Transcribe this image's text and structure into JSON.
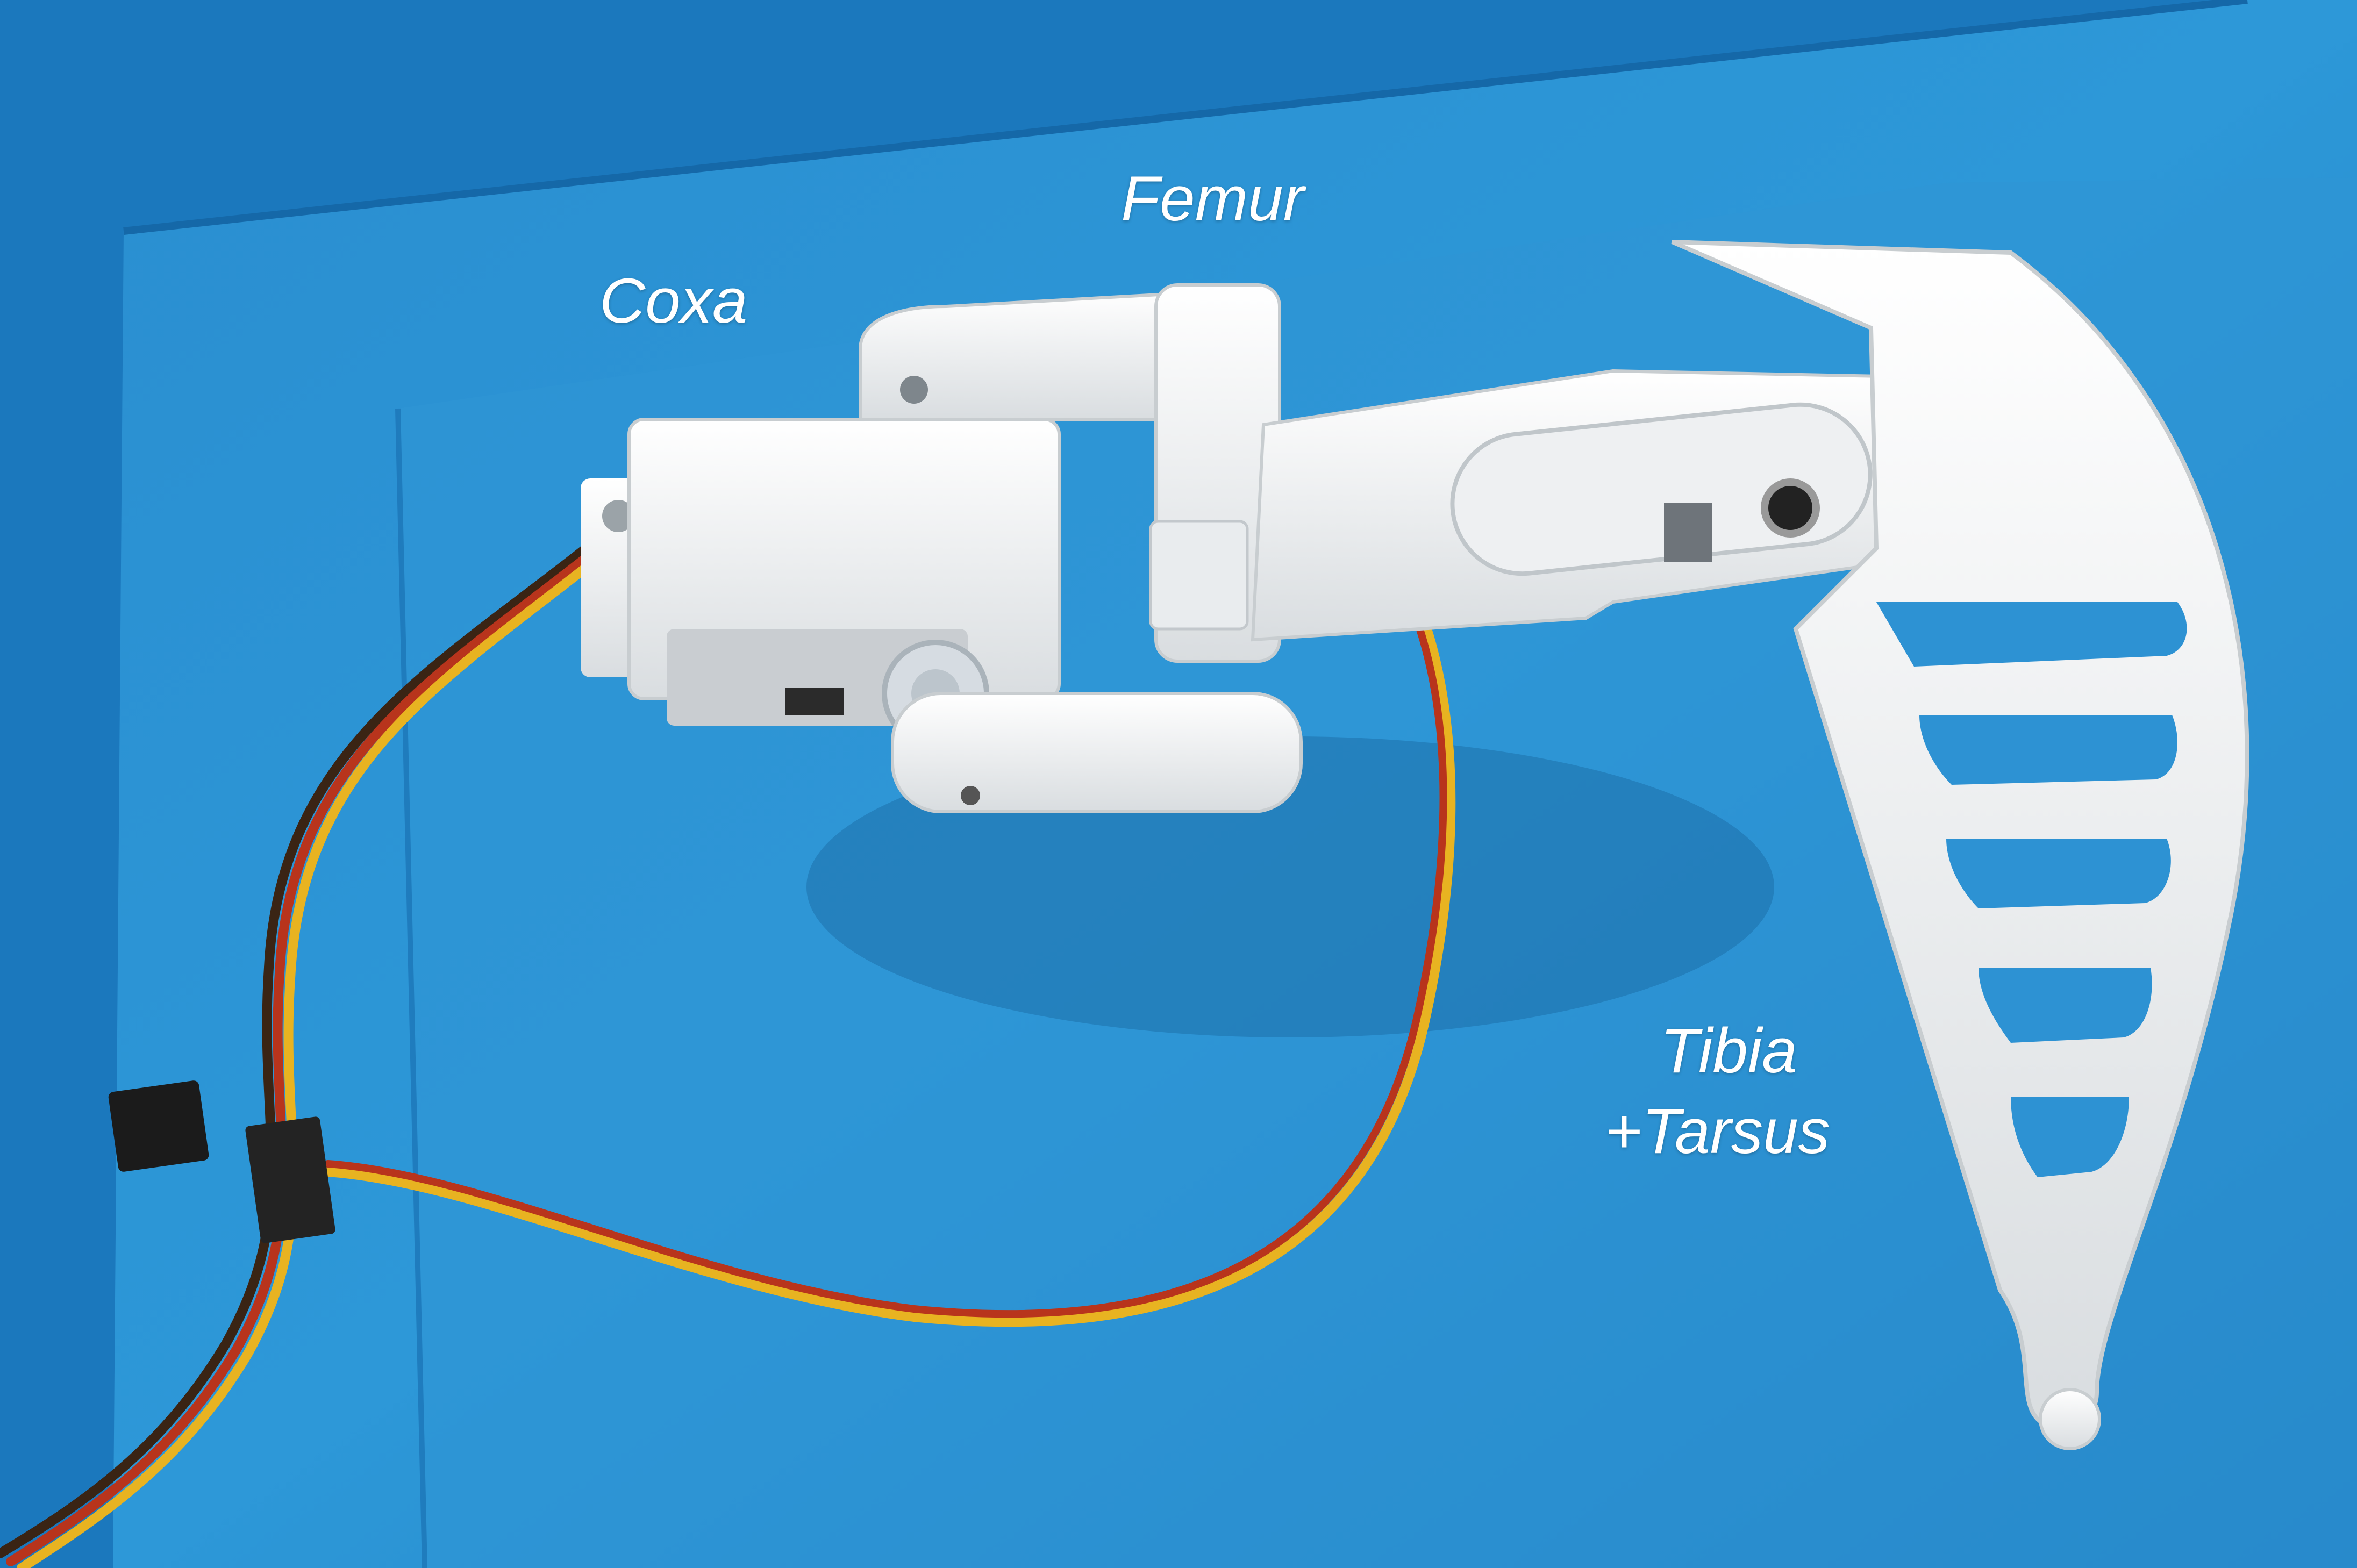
{
  "labels": {
    "coxa": "Coxa",
    "femur": "Femur",
    "tibia": "Tibia",
    "tarsus": "+Tarsus"
  },
  "colors": {
    "mat_dark": "#1f78ba",
    "mat_light": "#3199d6",
    "plastic_white": "#f2f4f5",
    "wire_yellow": "#e8b321",
    "wire_red": "#b8341c",
    "wire_brown": "#3a2414",
    "label_text": "#ffffff"
  }
}
